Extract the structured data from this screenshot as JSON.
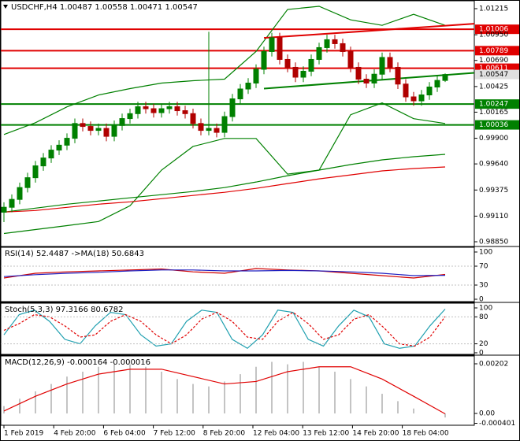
{
  "chart_data": [
    {
      "type": "candlestick",
      "title": "USDCHF,H4  1.00487 1.00558 1.00471 1.00547",
      "ylim": [
        0.98802,
        1.01303
      ],
      "yticks": [
        1.01215,
        {
          "value": 1.0095,
          "label": "1.00950"
        },
        {
          "value": 1.0069,
          "label": "1.00690"
        },
        1.00425,
        1.00165,
        {
          "value": 0.999,
          "label": "0.99900"
        },
        {
          "value": 0.9964,
          "label": "0.99640"
        },
        0.99375,
        {
          "value": 0.9911,
          "label": "0.99110"
        },
        {
          "value": 0.9885,
          "label": "0.98850"
        }
      ],
      "xticklabels": [
        "1 Feb 2019",
        "4 Feb 20:00",
        "6 Feb 04:00",
        "7 Feb 12:00",
        "8 Feb 20:00",
        "12 Feb 04:00",
        "13 Feb 12:00",
        "14 Feb 20:00",
        "18 Feb 04:00"
      ],
      "up_color": "#008000",
      "down_color": "#b00000",
      "ohlc": [
        [
          0.9915,
          0.9925,
          0.9905,
          0.992
        ],
        [
          0.992,
          0.9933,
          0.9915,
          0.9928
        ],
        [
          0.9928,
          0.9945,
          0.9923,
          0.994
        ],
        [
          0.994,
          0.9955,
          0.9935,
          0.995
        ],
        [
          0.995,
          0.9967,
          0.9945,
          0.9962
        ],
        [
          0.9962,
          0.9975,
          0.9957,
          0.997
        ],
        [
          0.997,
          0.9983,
          0.9965,
          0.9978
        ],
        [
          0.9978,
          0.9988,
          0.9973,
          0.9983
        ],
        [
          0.9983,
          0.9995,
          0.9978,
          0.999
        ],
        [
          0.999,
          1.001,
          0.9985,
          1.0005
        ],
        [
          1.0005,
          1.001,
          0.9997,
          1.0002
        ],
        [
          1.0002,
          1.0007,
          0.9993,
          0.9998
        ],
        [
          0.9998,
          1.0005,
          0.9993,
          1.0
        ],
        [
          1.0,
          1.0005,
          0.9987,
          0.9992
        ],
        [
          0.9992,
          1.0008,
          0.9987,
          1.0003
        ],
        [
          1.0003,
          1.0015,
          0.9998,
          1.001
        ],
        [
          1.001,
          1.002,
          1.0005,
          1.0015
        ],
        [
          1.0015,
          1.0027,
          1.001,
          1.0022
        ],
        [
          1.0022,
          1.0027,
          1.0015,
          1.002
        ],
        [
          1.002,
          1.0025,
          1.0011,
          1.0016
        ],
        [
          1.0016,
          1.0025,
          1.0011,
          1.002
        ],
        [
          1.002,
          1.0027,
          1.0015,
          1.0022
        ],
        [
          1.0022,
          1.0027,
          1.0013,
          1.0018
        ],
        [
          1.0018,
          1.0023,
          1.001,
          1.0015
        ],
        [
          1.0015,
          1.002,
          1.0,
          1.0005
        ],
        [
          1.0005,
          1.001,
          0.9993,
          0.9998
        ],
        [
          0.9998,
          1.0098,
          0.9993,
          1.0
        ],
        [
          1.0,
          1.0005,
          0.9991,
          0.9996
        ],
        [
          0.9996,
          1.0017,
          0.9991,
          1.0012
        ],
        [
          1.0012,
          1.0035,
          1.0007,
          1.003
        ],
        [
          1.003,
          1.0045,
          1.0025,
          1.004
        ],
        [
          1.004,
          1.0051,
          1.0035,
          1.0046
        ],
        [
          1.0046,
          1.0065,
          1.0041,
          1.006
        ],
        [
          1.006,
          1.0083,
          1.0055,
          1.0078
        ],
        [
          1.0078,
          1.0097,
          1.0073,
          1.0092
        ],
        [
          1.0092,
          1.0097,
          1.0065,
          1.007
        ],
        [
          1.007,
          1.0075,
          1.0057,
          1.0062
        ],
        [
          1.0062,
          1.0067,
          1.0047,
          1.0052
        ],
        [
          1.0052,
          1.0063,
          1.0047,
          1.0058
        ],
        [
          1.0058,
          1.0075,
          1.0053,
          1.007
        ],
        [
          1.007,
          1.0087,
          1.0065,
          1.0082
        ],
        [
          1.0082,
          1.0095,
          1.0077,
          1.009
        ],
        [
          1.009,
          1.0095,
          1.0081,
          1.0086
        ],
        [
          1.0086,
          1.0091,
          1.0073,
          1.0078
        ],
        [
          1.0078,
          1.0083,
          1.0057,
          1.0062
        ],
        [
          1.0062,
          1.0067,
          1.0045,
          1.005
        ],
        [
          1.005,
          1.0055,
          1.0041,
          1.0046
        ],
        [
          1.0046,
          1.006,
          1.0041,
          1.0055
        ],
        [
          1.0055,
          1.0077,
          1.005,
          1.0072
        ],
        [
          1.0072,
          1.0077,
          1.0057,
          1.0062
        ],
        [
          1.0062,
          1.0067,
          1.004,
          1.0045
        ],
        [
          1.0045,
          1.005,
          1.0027,
          1.0032
        ],
        [
          1.0032,
          1.0037,
          1.0023,
          1.0028
        ],
        [
          1.0028,
          1.0039,
          1.0023,
          1.0034
        ],
        [
          1.0034,
          1.0047,
          1.0029,
          1.0042
        ],
        [
          1.0042,
          1.0054,
          1.0037,
          1.00487
        ],
        [
          1.00487,
          1.00558,
          1.00471,
          1.00547
        ]
      ],
      "overlays": [
        {
          "color": "#008000",
          "values": [
            0.99938,
            1.00058,
            1.00219,
            1.00339,
            1.00404,
            1.0046,
            1.00484,
            1.005,
            1.00781,
            1.01207,
            1.01239,
            1.01102,
            1.01046,
            1.01158,
            1.01046
          ]
        },
        {
          "color": "#008000",
          "values": [
            0.98934,
            0.98974,
            0.99014,
            0.99055,
            0.99215,
            0.99577,
            0.99817,
            0.99898,
            0.99898,
            0.99536,
            0.99577,
            1.00139,
            1.00259,
            1.00099,
            1.0005
          ]
        },
        {
          "color": "#008000",
          "values": [
            0.99151,
            0.99191,
            0.99231,
            0.99263,
            0.99296,
            0.99328,
            0.9936,
            0.994,
            0.99456,
            0.9952,
            0.99577,
            0.99633,
            0.99681,
            0.99713,
            0.99737
          ]
        },
        {
          "color": "#e00000",
          "values": [
            0.99151,
            0.99167,
            0.99199,
            0.99231,
            0.99255,
            0.99287,
            0.9932,
            0.99352,
            0.99392,
            0.9944,
            0.99488,
            0.99528,
            0.99569,
            0.99593,
            0.99609
          ]
        }
      ],
      "trendlines": [
        {
          "color": "#e00000",
          "values": [
            1.00918,
            1.01062
          ]
        },
        {
          "color": "#008000",
          "values": [
            1.00404,
            1.00564
          ]
        }
      ],
      "levels": [
        {
          "value": 1.01006,
          "color": "#e00000"
        },
        {
          "value": 1.00789,
          "color": "#e00000"
        },
        {
          "value": 1.00611,
          "color": "#e00000"
        },
        {
          "value": 1.00247,
          "color": "#008000"
        },
        {
          "value": 1.00036,
          "color": "#008000"
        }
      ],
      "last_price": 1.00547
    },
    {
      "type": "line",
      "title": "RSI(14) 52.4487 ->MA(18) 50.6843",
      "ylim": [
        -5,
        110
      ],
      "yticks": [
        100,
        70,
        30,
        0
      ],
      "series": [
        {
          "color": "#d00000",
          "values": [
            45,
            55,
            58,
            60,
            62,
            64,
            58,
            55,
            65,
            62,
            60,
            55,
            50,
            45,
            52.4487
          ]
        },
        {
          "color": "#2020c0",
          "values": [
            48,
            52,
            55,
            57,
            60,
            62,
            62,
            60,
            60,
            61,
            60,
            58,
            55,
            50,
            50.6843
          ]
        }
      ]
    },
    {
      "type": "line",
      "title": "Stoch(5,3,3) 97.3166 80.6782",
      "ylim": [
        -3.5,
        110.5
      ],
      "yticks": [
        100,
        80,
        20,
        0
      ],
      "series": [
        {
          "color": "#20a0b0",
          "values": [
            40,
            85,
            95,
            70,
            30,
            20,
            60,
            90,
            85,
            40,
            15,
            20,
            70,
            95,
            90,
            30,
            10,
            40,
            95,
            90,
            30,
            15,
            60,
            95,
            80,
            20,
            10,
            15,
            60,
            97.3166
          ]
        },
        {
          "color": "#e00000",
          "dashed": true,
          "values": [
            50,
            65,
            85,
            80,
            60,
            35,
            40,
            70,
            85,
            70,
            40,
            20,
            40,
            75,
            90,
            70,
            35,
            30,
            70,
            90,
            65,
            30,
            40,
            75,
            85,
            55,
            20,
            15,
            35,
            80.6782
          ]
        }
      ]
    },
    {
      "type": "macd",
      "title": "MACD(12,26,9) -0.000164 -0.000016",
      "ylim": [
        -0.00048,
        0.00234
      ],
      "yticks": [
        0.00202,
        {
          "value": 0,
          "label": "0.00"
        },
        -0.000401
      ],
      "histogram": {
        "color": "#b0b0b0",
        "values": [
          0.0003,
          0.0006,
          0.0009,
          0.0012,
          0.0015,
          0.0017,
          0.0019,
          0.002,
          0.002,
          0.0019,
          0.0017,
          0.0014,
          0.0012,
          0.0011,
          0.0013,
          0.0016,
          0.0019,
          0.0021,
          0.002,
          0.0021,
          0.0019,
          0.0017,
          0.0014,
          0.0011,
          0.0008,
          0.0005,
          0.0002,
          0.0,
          -0.000164
        ]
      },
      "signal": {
        "color": "#e00000",
        "values": [
          0.0001,
          0.0007,
          0.0012,
          0.0016,
          0.0018,
          0.0018,
          0.0015,
          0.0012,
          0.0013,
          0.0017,
          0.0019,
          0.0019,
          0.0014,
          0.0007,
          -1.6e-05
        ]
      }
    }
  ]
}
